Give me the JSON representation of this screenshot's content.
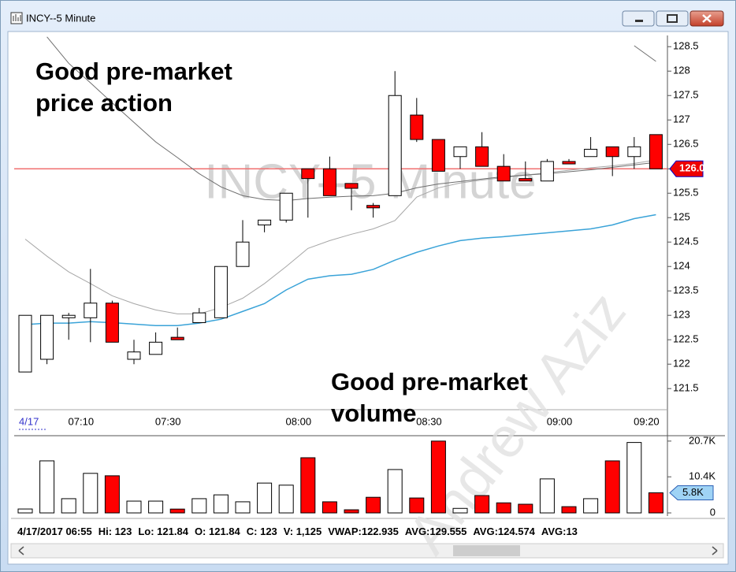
{
  "window": {
    "title": "INCY--5 Minute"
  },
  "chart_data": [
    {
      "type": "candlestick",
      "title": "INCY--5 Minute",
      "categories": [
        "4/17",
        null,
        null,
        "07:10",
        null,
        null,
        null,
        "07:30",
        null,
        null,
        null,
        null,
        null,
        "08:00",
        null,
        null,
        null,
        null,
        null,
        "08:30",
        null,
        null,
        null,
        null,
        null,
        "09:00",
        null,
        null,
        null,
        "09:20"
      ],
      "open": [
        121.84,
        122.1,
        122.95,
        122.95,
        123.25,
        122.1,
        122.2,
        122.55,
        122.85,
        122.95,
        124.0,
        124.85,
        124.95,
        126.0,
        126.0,
        125.7,
        125.25,
        125.45,
        127.1,
        126.6,
        126.25,
        126.45,
        126.05,
        125.8,
        125.75,
        126.15,
        126.25,
        126.45,
        126.25,
        126.7
      ],
      "high": [
        123,
        123.0,
        123.05,
        123.95,
        123.3,
        122.5,
        122.65,
        122.75,
        123.15,
        124.0,
        124.95,
        124.95,
        125.5,
        126.0,
        126.25,
        125.7,
        125.3,
        128.0,
        127.45,
        126.6,
        126.45,
        126.75,
        126.3,
        126.15,
        126.2,
        126.2,
        126.65,
        126.45,
        126.65,
        126.7
      ],
      "low": [
        121.84,
        122.0,
        122.5,
        122.45,
        122.45,
        122.0,
        122.2,
        122.5,
        122.85,
        122.95,
        124.0,
        124.7,
        124.9,
        125.0,
        125.45,
        125.15,
        125.0,
        125.45,
        126.55,
        125.95,
        126.0,
        126.05,
        125.75,
        125.75,
        125.75,
        126.1,
        126.25,
        125.85,
        126.0,
        126.0
      ],
      "close": [
        123,
        123.0,
        123.0,
        123.25,
        122.45,
        122.25,
        122.45,
        122.5,
        123.05,
        124.0,
        124.5,
        124.95,
        125.5,
        125.8,
        125.45,
        125.6,
        125.2,
        127.5,
        126.6,
        125.95,
        126.45,
        126.05,
        125.75,
        125.75,
        126.15,
        126.1,
        126.4,
        126.25,
        126.45,
        126.0
      ],
      "up_color": "#ffffff",
      "down_color": "#ff0000",
      "lines": [
        {
          "color": "#a6a6a6",
          "values": [
            124.56,
            124.21,
            123.89,
            123.65,
            123.4,
            123.24,
            123.11,
            123.03,
            123.03,
            123.16,
            123.35,
            123.65,
            124.0,
            124.37,
            124.53,
            124.66,
            124.77,
            124.94,
            125.42,
            125.61,
            125.71,
            125.77,
            125.82,
            125.87,
            125.92,
            125.97,
            126.02,
            126.06,
            126.11,
            126.18
          ]
        },
        {
          "color": "#6e6e6e",
          "values": [
            null,
            128.7,
            128.16,
            127.76,
            127.35,
            126.95,
            126.55,
            126.23,
            125.9,
            125.63,
            125.45,
            125.37,
            125.35,
            125.39,
            125.42,
            125.44,
            125.45,
            125.5,
            125.61,
            125.69,
            125.74,
            125.79,
            125.84,
            125.87,
            125.9,
            125.94,
            125.98,
            126.03,
            126.08,
            126.13
          ]
        },
        {
          "color": "#3aa3d8",
          "values": [
            122.81,
            122.84,
            122.84,
            122.87,
            122.85,
            122.82,
            122.79,
            122.79,
            122.84,
            122.92,
            123.08,
            123.24,
            123.52,
            123.74,
            123.81,
            123.84,
            123.94,
            124.13,
            124.29,
            124.42,
            124.53,
            124.58,
            124.61,
            124.65,
            124.69,
            124.73,
            124.77,
            124.85,
            124.98,
            125.06
          ]
        },
        {
          "color": "#6e6e6e",
          "values": [
            null,
            null,
            null,
            null,
            null,
            null,
            null,
            null,
            null,
            null,
            null,
            null,
            null,
            null,
            null,
            null,
            null,
            null,
            null,
            null,
            null,
            null,
            null,
            null,
            null,
            null,
            null,
            null,
            128.52,
            128.2
          ]
        }
      ],
      "ylim": [
        121.1,
        128.73
      ],
      "yticks": [
        128.5,
        128,
        127.5,
        127,
        126.5,
        126,
        125.5,
        125,
        124.5,
        124,
        123.5,
        123,
        122.5,
        122,
        121.5
      ],
      "current_price": {
        "value": 126,
        "label": "126.00"
      },
      "annotations": [
        [
          "Good pre-market",
          "price action"
        ],
        [
          "Good pre-market",
          "volume"
        ]
      ],
      "watermark": "Andrew Aziz"
    },
    {
      "type": "bar",
      "values": [
        1125,
        15000,
        4100,
        11400,
        10700,
        3400,
        3400,
        1100,
        4100,
        5200,
        3200,
        8600,
        8000,
        15900,
        3200,
        900,
        4500,
        12500,
        4300,
        20700,
        1300,
        5000,
        2900,
        2500,
        9800,
        1800,
        4100,
        15000,
        20300,
        5800
      ],
      "ylim": [
        0,
        21800
      ],
      "yticks": [
        {
          "value": 20700,
          "label": "20.7K"
        },
        {
          "value": 10400,
          "label": "10.4K"
        },
        0
      ],
      "current_value": {
        "value": 5800,
        "label": "5.8K"
      }
    }
  ],
  "status": [
    "4/17/2017 06:55",
    "Hi: 123",
    "Lo: 121.84",
    "O: 121.84",
    "C: 123",
    "V: 1,125",
    "VWAP:122.935",
    "AVG:129.555",
    "AVG:124.574",
    "AVG:13"
  ]
}
